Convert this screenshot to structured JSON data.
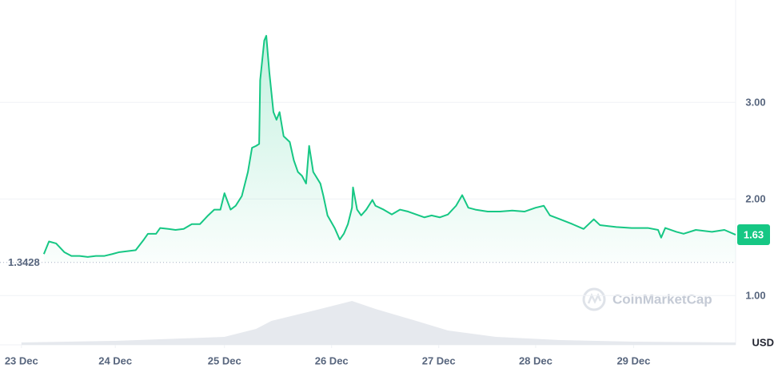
{
  "chart_data": {
    "type": "line",
    "color": "#16c784",
    "x": [
      0.22,
      0.27,
      0.34,
      0.42,
      0.49,
      0.57,
      0.65,
      0.73,
      0.81,
      0.89,
      0.96,
      1.04,
      1.12,
      1.2,
      1.24,
      1.32,
      1.36,
      1.44,
      1.51,
      1.59,
      1.67,
      1.75,
      1.83,
      1.89,
      1.95,
      1.99,
      2.05,
      2.1,
      2.16,
      2.22,
      2.26,
      2.3,
      2.33,
      2.34,
      2.38,
      2.4,
      2.43,
      2.47,
      2.5,
      2.53,
      2.57,
      2.63,
      2.67,
      2.71,
      2.75,
      2.79,
      2.82,
      2.86,
      2.93,
      2.96,
      3.0,
      3.07,
      3.12,
      3.16,
      3.2,
      3.24,
      3.25,
      3.29,
      3.33,
      3.38,
      3.44,
      3.47,
      3.55,
      3.63,
      3.71,
      3.79,
      3.87,
      3.95,
      4.02,
      4.1,
      4.18,
      4.26,
      4.32,
      4.38,
      4.45,
      4.57,
      4.69,
      4.81,
      4.93,
      5.04,
      5.12,
      5.18,
      5.28,
      5.4,
      5.51,
      5.61,
      5.67,
      5.83,
      5.98,
      6.14,
      6.24,
      6.27,
      6.31,
      6.42,
      6.49,
      6.61,
      6.77,
      6.89,
      7.0
    ],
    "values": [
      1.43,
      1.56,
      1.54,
      1.45,
      1.41,
      1.41,
      1.4,
      1.41,
      1.41,
      1.43,
      1.45,
      1.46,
      1.47,
      1.58,
      1.64,
      1.64,
      1.7,
      1.69,
      1.68,
      1.69,
      1.74,
      1.74,
      1.83,
      1.89,
      1.89,
      2.06,
      1.89,
      1.93,
      2.03,
      2.28,
      2.53,
      2.55,
      2.57,
      3.23,
      3.64,
      3.69,
      3.31,
      2.9,
      2.82,
      2.9,
      2.65,
      2.59,
      2.4,
      2.28,
      2.24,
      2.16,
      2.55,
      2.28,
      2.16,
      2.03,
      1.83,
      1.7,
      1.58,
      1.64,
      1.74,
      1.91,
      2.12,
      1.89,
      1.83,
      1.89,
      1.99,
      1.93,
      1.89,
      1.84,
      1.89,
      1.87,
      1.84,
      1.81,
      1.83,
      1.81,
      1.84,
      1.93,
      2.04,
      1.91,
      1.89,
      1.87,
      1.87,
      1.88,
      1.87,
      1.91,
      1.93,
      1.83,
      1.79,
      1.74,
      1.69,
      1.79,
      1.73,
      1.71,
      1.7,
      1.7,
      1.68,
      1.6,
      1.7,
      1.66,
      1.64,
      1.68,
      1.66,
      1.68,
      1.63
    ],
    "volume": {
      "axis": "y2",
      "color": "#e6e9ee",
      "x": [
        0,
        0.92,
        1.99,
        2.3,
        2.45,
        2.77,
        2.93,
        3.24,
        3.47,
        3.87,
        4.18,
        4.65,
        5.28,
        6.0,
        7.0
      ],
      "values": [
        3,
        5,
        10,
        20,
        30,
        40,
        45,
        55,
        45,
        30,
        18,
        10,
        6,
        4,
        3
      ]
    },
    "y2lim": [
      0,
      432
    ],
    "xlim": [
      -0.21,
      7.0
    ],
    "xticks": [
      {
        "value": 0,
        "label": "23 Dec"
      },
      {
        "value": 0.92,
        "label": "24 Dec"
      },
      {
        "value": 1.99,
        "label": "25 Dec"
      },
      {
        "value": 3.04,
        "label": "26 Dec"
      },
      {
        "value": 4.09,
        "label": "27 Dec"
      },
      {
        "value": 5.04,
        "label": "28 Dec"
      },
      {
        "value": 6.0,
        "label": "29 Dec"
      }
    ],
    "ylim": [
      0.49,
      4.06
    ],
    "yticks": [
      {
        "value": 1,
        "label": "1.00"
      },
      {
        "value": 2,
        "label": "2.00"
      },
      {
        "value": 3,
        "label": "3.00"
      }
    ],
    "grid": true,
    "last_value": 1.63,
    "reference": 1.3428,
    "unit": "USD",
    "watermark": "CoinMarketCap"
  }
}
